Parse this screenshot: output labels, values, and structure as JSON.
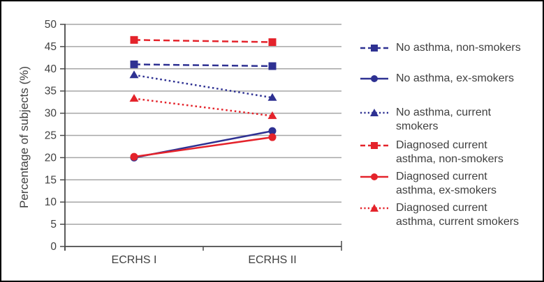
{
  "figure": {
    "background": "#ffffff",
    "border_color": "#000000",
    "text_color": "#404040",
    "gridline_color": "#a6a6a6",
    "axis_color": "#4a4a4a"
  },
  "chart_data": {
    "type": "line",
    "title": "",
    "xlabel": "",
    "ylabel": "Percentage of subjects (%)",
    "categories": [
      "ECRHS I",
      "ECRHS II"
    ],
    "ylim": [
      0,
      50
    ],
    "ytick_step": 5,
    "ytick_labels": [
      "0",
      "5",
      "10",
      "15",
      "20",
      "25",
      "30",
      "35",
      "40",
      "45",
      "50"
    ],
    "grid": true,
    "legend_position": "right",
    "series": [
      {
        "name": "No asthma, non-smokers",
        "label_lines": [
          "No asthma, non-smokers"
        ],
        "color": "#2e3192",
        "line_style": "dashed",
        "marker": "square",
        "values": [
          41,
          40.6
        ]
      },
      {
        "name": "No asthma, ex-smokers",
        "label_lines": [
          "No asthma, ex-smokers"
        ],
        "color": "#2e3192",
        "line_style": "solid",
        "marker": "circle",
        "values": [
          20,
          26
        ]
      },
      {
        "name": "No asthma, current smokers",
        "label_lines": [
          "No asthma, current",
          "smokers"
        ],
        "color": "#2e3192",
        "line_style": "dotted",
        "marker": "triangle",
        "values": [
          38.6,
          33.5
        ]
      },
      {
        "name": "Diagnosed current asthma, non-smokers",
        "label_lines": [
          "Diagnosed current",
          "asthma, non-smokers"
        ],
        "color": "#e4232b",
        "line_style": "dashed",
        "marker": "square",
        "values": [
          46.5,
          46
        ]
      },
      {
        "name": "Diagnosed current asthma, ex-smokers",
        "label_lines": [
          "Diagnosed current",
          "asthma, ex-smokers"
        ],
        "color": "#e4232b",
        "line_style": "solid",
        "marker": "circle",
        "values": [
          20.2,
          24.6
        ]
      },
      {
        "name": "Diagnosed current asthma, current smokers",
        "label_lines": [
          "Diagnosed current",
          "asthma, current smokers"
        ],
        "color": "#e4232b",
        "line_style": "dotted",
        "marker": "triangle",
        "values": [
          33.3,
          29.4
        ]
      }
    ]
  }
}
